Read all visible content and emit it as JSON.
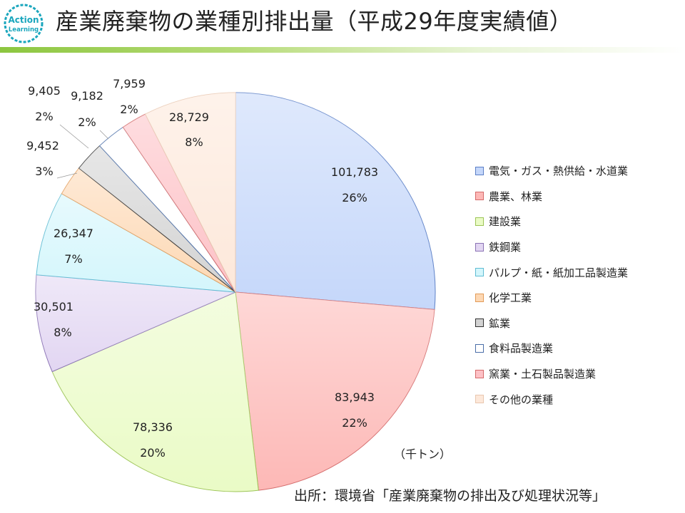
{
  "logo": {
    "line1": "Action",
    "line2": "Learning"
  },
  "title": "産業廃棄物の業種別排出量（平成29年度実績値）",
  "unit": "（千トン）",
  "source": "出所：環境省「産業廃棄物の排出及び処理状況等」",
  "chart_data": {
    "type": "pie",
    "title": "産業廃棄物の業種別排出量（平成29年度実績値）",
    "unit": "千トン",
    "legend_position": "right",
    "start_angle": "12 o'clock, clockwise",
    "slices": [
      {
        "name": "電気・ガス・熱供給・水道業",
        "value": 101783,
        "value_label": "101,783",
        "percent_label": "26%",
        "fill": "#c5d7fa",
        "stroke": "#5b7fc6"
      },
      {
        "name": "農業、林業",
        "value": 83943,
        "value_label": "83,943",
        "percent_label": "22%",
        "fill": "#fdb8b6",
        "stroke": "#d46a6a"
      },
      {
        "name": "建設業",
        "value": 78336,
        "value_label": "78,336",
        "percent_label": "20%",
        "fill": "#eafbc6",
        "stroke": "#9cc456"
      },
      {
        "name": "鉄鋼業",
        "value": 30501,
        "value_label": "30,501",
        "percent_label": "8%",
        "fill": "#e2d6f2",
        "stroke": "#8b73b5"
      },
      {
        "name": "パルプ・紙・紙加工品製造業",
        "value": 26347,
        "value_label": "26,347",
        "percent_label": "7%",
        "fill": "#d4f6fc",
        "stroke": "#5fbcd3"
      },
      {
        "name": "化学工業",
        "value": 9452,
        "value_label": "9,452",
        "percent_label": "3%",
        "fill": "#fdd8b4",
        "stroke": "#e29b58"
      },
      {
        "name": "鉱業",
        "value": 9405,
        "value_label": "9,405",
        "percent_label": "2%",
        "fill": "#d3d3d3",
        "stroke": "#333333"
      },
      {
        "name": "食料品製造業",
        "value": 9182,
        "value_label": "9,182",
        "percent_label": "2%",
        "fill": "#ffffff",
        "stroke": "#4a6ea8"
      },
      {
        "name": "窯業・土石製品製造業",
        "value": 7959,
        "value_label": "7,959",
        "percent_label": "2%",
        "fill": "#fdc1c6",
        "stroke": "#d46a6a"
      },
      {
        "name": "その他の業種",
        "value": 28729,
        "value_label": "28,729",
        "percent_label": "8%",
        "fill": "#fde8da",
        "stroke": "#e9c7b0"
      }
    ]
  }
}
